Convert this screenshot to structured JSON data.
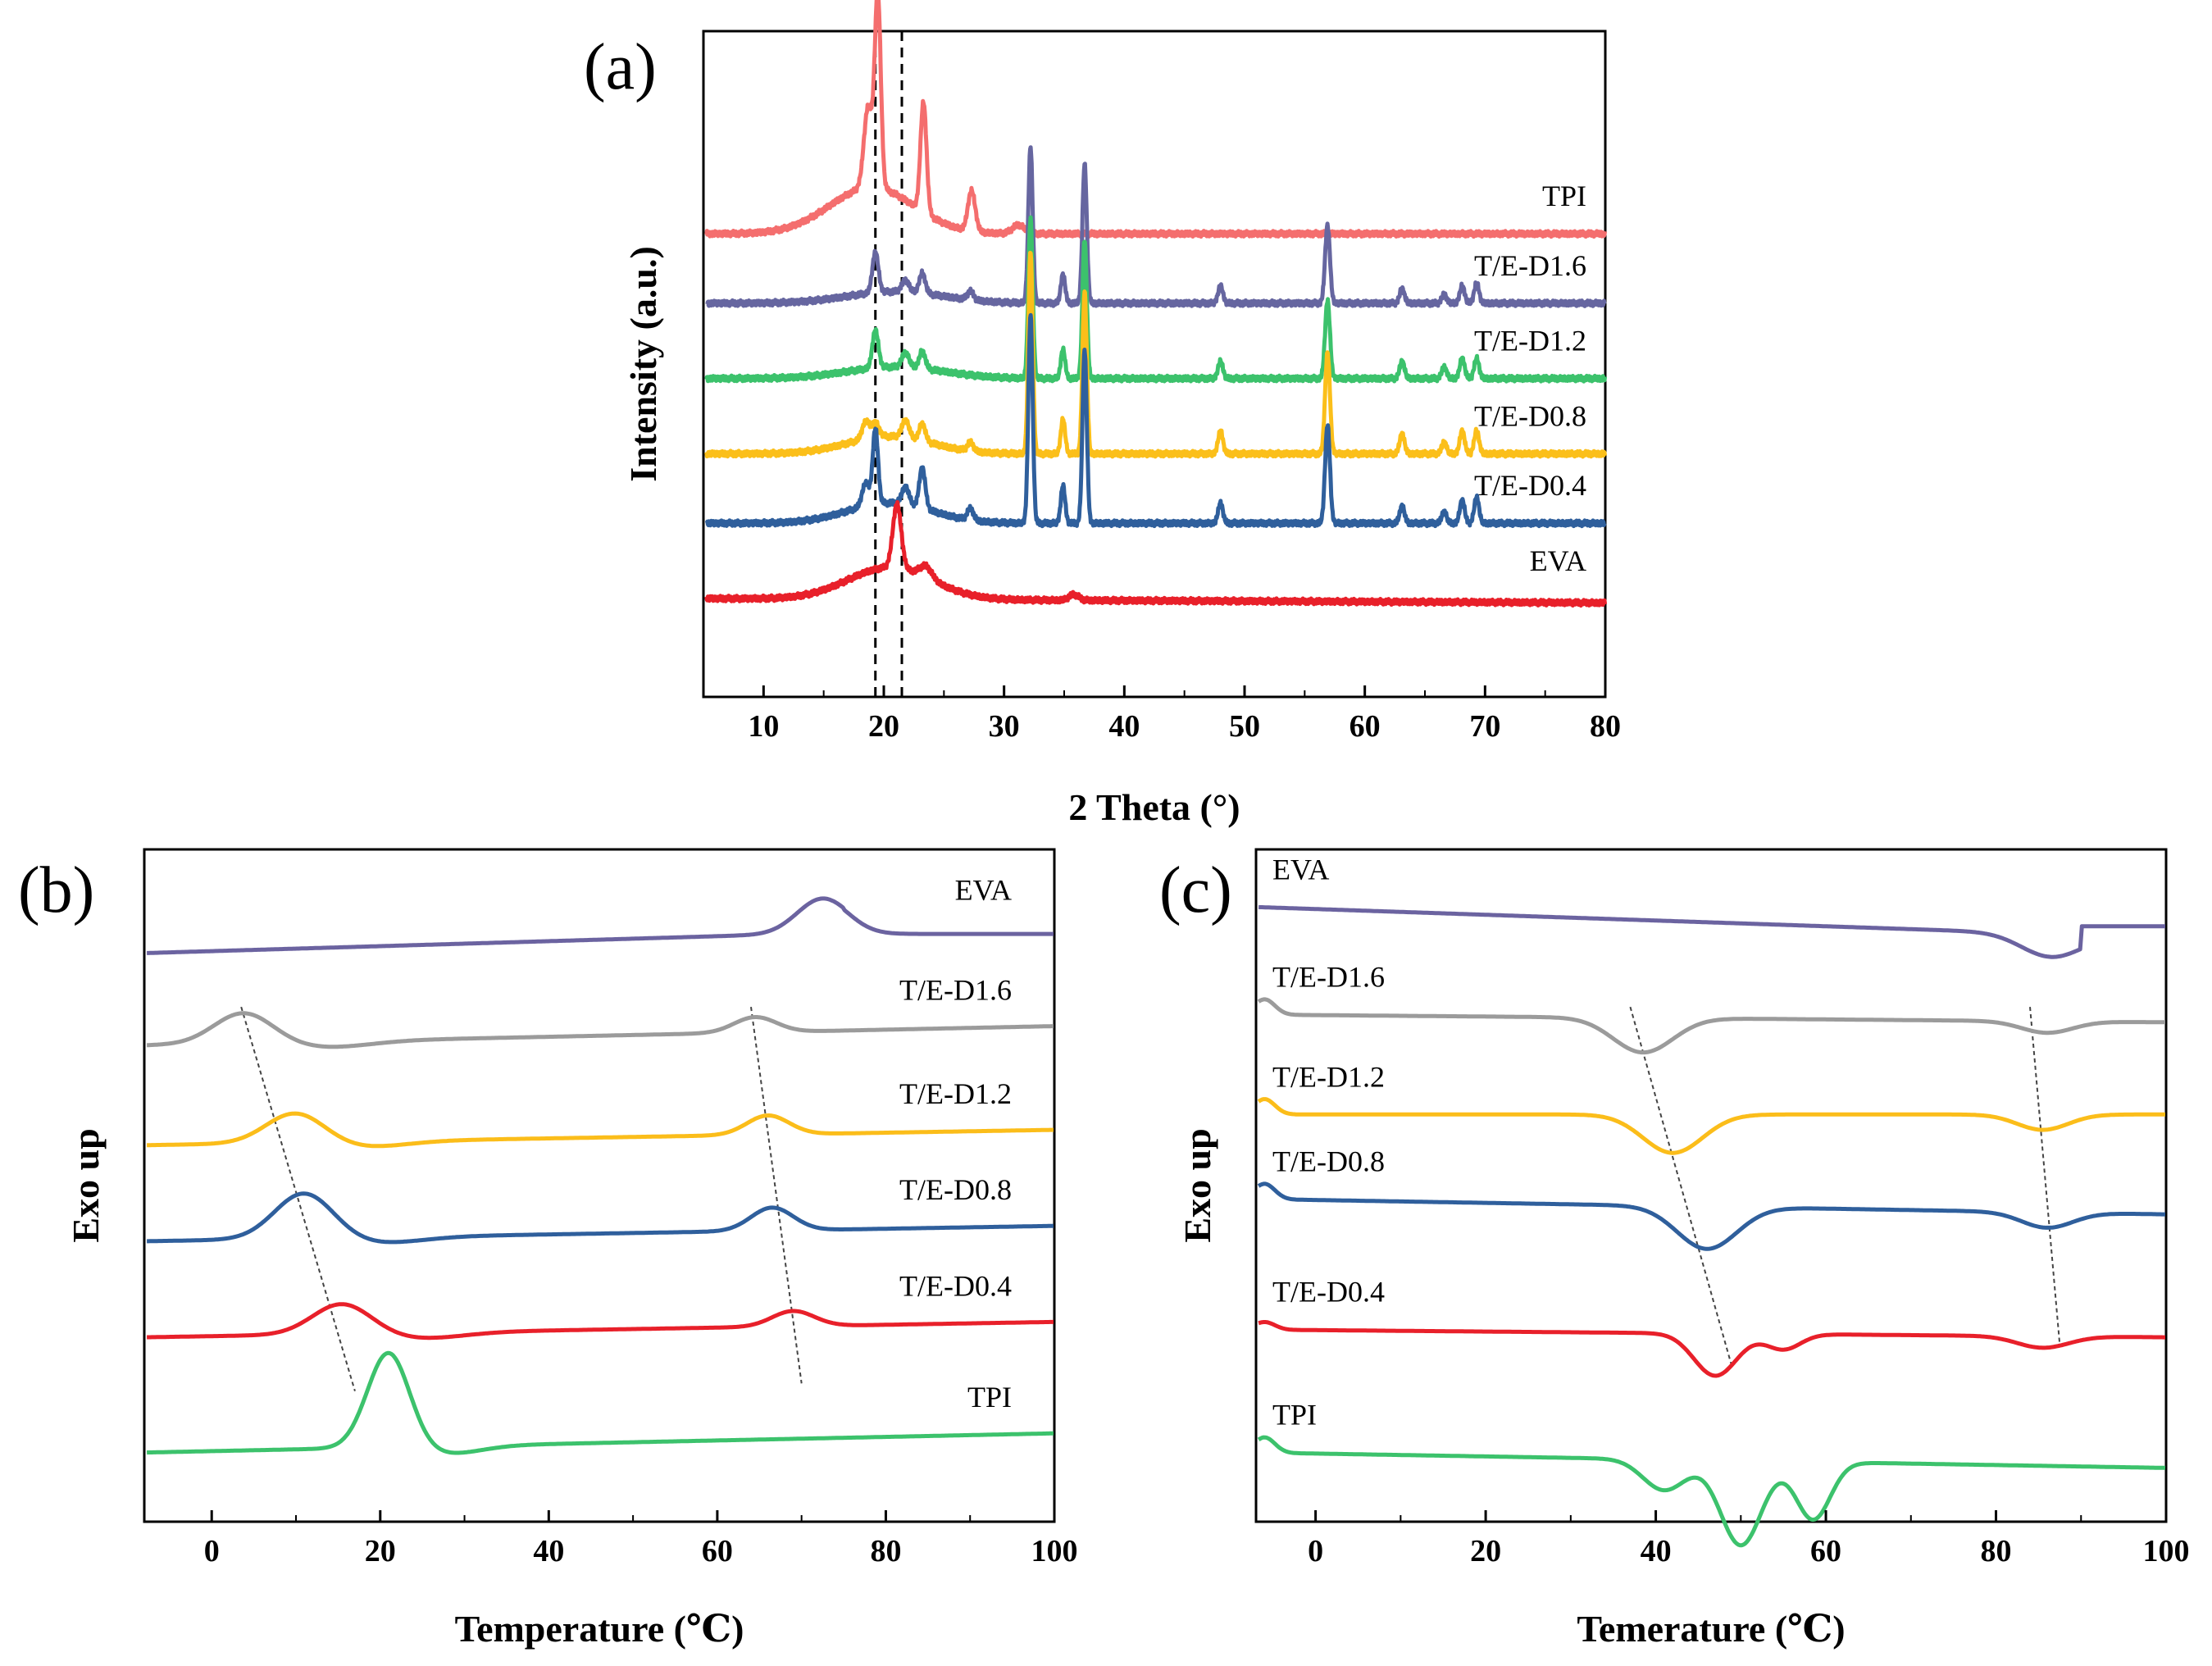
{
  "colors": {
    "TPI_xrd": "#f46e6e",
    "T/E-D1.6_xrd": "#6666a0",
    "T/E-D1.2_xrd": "#3cc26c",
    "T/E-D0.8_xrd": "#fbbf1a",
    "T/E-D0.4_xrd": "#2f5f9c",
    "EVA_xrd": "#e8202a",
    "EVA_dsc": "#6b63a0",
    "T/E-D1.6_dsc": "#9b9b9b",
    "T/E-D1.2_dsc": "#fbbd1a",
    "T/E-D0.8_dsc": "#2f5f9c",
    "T/E-D0.4_dsc": "#e8202a",
    "TPI_dsc": "#3cc26c"
  },
  "chart_data": [
    {
      "id": "a",
      "panel_label": "(a)",
      "type": "line",
      "xlabel": "2 Theta (°)",
      "ylabel": "Intensity (a.u.)",
      "xlim": [
        5,
        80
      ],
      "xticks": [
        "10",
        "20",
        "30",
        "40",
        "50",
        "60",
        "70",
        "80"
      ],
      "yticks": [],
      "grid": false,
      "reference_lines_x": [
        19.3,
        21.5
      ],
      "series": [
        {
          "name": "TPI",
          "label": "TPI",
          "color_key": "TPI_xrd",
          "baseline": 100,
          "slope": 0.0,
          "broad_halo": {
            "center": 19,
            "height": 16,
            "width": 3.5
          },
          "peaks": [
            [
              18.7,
              28,
              0.35
            ],
            [
              19.5,
              66,
              0.25
            ],
            [
              23.3,
              38,
              0.25
            ],
            [
              27.3,
              14,
              0.3
            ],
            [
              31.2,
              3,
              0.5
            ]
          ]
        },
        {
          "name": "T/E-D1.6",
          "label": "T/E-D1.6",
          "color_key": "T/E-D1.6_xrd",
          "baseline": 76,
          "slope": 0.0,
          "broad_halo": {
            "center": 21,
            "height": 4,
            "width": 4
          },
          "peaks": [
            [
              19.3,
              14,
              0.25
            ],
            [
              21.8,
              4,
              0.3
            ],
            [
              23.2,
              7,
              0.25
            ],
            [
              27.2,
              3,
              0.25
            ],
            [
              32.2,
              54,
              0.18
            ],
            [
              34.9,
              10,
              0.18
            ],
            [
              36.7,
              48,
              0.18
            ],
            [
              48.0,
              6,
              0.2
            ],
            [
              56.9,
              27,
              0.2
            ],
            [
              63.1,
              5,
              0.2
            ],
            [
              66.6,
              3,
              0.2
            ],
            [
              68.1,
              6,
              0.2
            ],
            [
              69.3,
              7,
              0.2
            ]
          ]
        },
        {
          "name": "T/E-D1.2",
          "label": "T/E-D1.2",
          "color_key": "T/E-D1.2_xrd",
          "baseline": 50,
          "slope": 0.0,
          "broad_halo": {
            "center": 21,
            "height": 4,
            "width": 4
          },
          "peaks": [
            [
              19.3,
              13,
              0.25
            ],
            [
              21.8,
              5,
              0.3
            ],
            [
              23.2,
              6,
              0.25
            ],
            [
              32.2,
              55,
              0.18
            ],
            [
              34.9,
              10,
              0.18
            ],
            [
              36.7,
              48,
              0.18
            ],
            [
              48.0,
              6,
              0.2
            ],
            [
              56.9,
              27,
              0.2
            ],
            [
              63.1,
              6,
              0.2
            ],
            [
              66.6,
              4,
              0.2
            ],
            [
              68.1,
              7,
              0.2
            ],
            [
              69.3,
              7,
              0.2
            ]
          ]
        },
        {
          "name": "T/E-D0.8",
          "label": "T/E-D0.8",
          "color_key": "T/E-D0.8_xrd",
          "baseline": 24,
          "slope": 0.0,
          "broad_halo": {
            "center": 20.5,
            "height": 6,
            "width": 3.5
          },
          "peaks": [
            [
              18.5,
              6,
              0.3
            ],
            [
              19.3,
              5,
              0.3
            ],
            [
              21.8,
              6,
              0.3
            ],
            [
              23.2,
              6,
              0.25
            ],
            [
              27.2,
              3,
              0.25
            ],
            [
              32.2,
              70,
              0.18
            ],
            [
              34.9,
              12,
              0.18
            ],
            [
              36.7,
              56,
              0.18
            ],
            [
              48.0,
              8,
              0.2
            ],
            [
              56.9,
              35,
              0.2
            ],
            [
              63.1,
              7,
              0.2
            ],
            [
              66.6,
              4,
              0.2
            ],
            [
              68.1,
              8,
              0.2
            ],
            [
              69.3,
              8,
              0.2
            ]
          ]
        },
        {
          "name": "T/E-D0.4",
          "label": "T/E-D0.4",
          "color_key": "T/E-D0.4_xrd",
          "baseline": 0,
          "slope": 0.0,
          "broad_halo": {
            "center": 20.5,
            "height": 7,
            "width": 3.5
          },
          "peaks": [
            [
              18.5,
              8,
              0.3
            ],
            [
              19.3,
              26,
              0.22
            ],
            [
              21.8,
              6,
              0.3
            ],
            [
              23.2,
              14,
              0.25
            ],
            [
              27.2,
              4,
              0.25
            ],
            [
              32.2,
              72,
              0.18
            ],
            [
              34.9,
              13,
              0.18
            ],
            [
              36.7,
              60,
              0.18
            ],
            [
              48.0,
              7,
              0.2
            ],
            [
              56.9,
              34,
              0.2
            ],
            [
              63.1,
              6,
              0.2
            ],
            [
              66.6,
              4,
              0.2
            ],
            [
              68.1,
              8,
              0.2
            ],
            [
              69.3,
              9,
              0.2
            ]
          ]
        },
        {
          "name": "EVA",
          "label": "EVA",
          "color_key": "EVA_xrd",
          "baseline": -26,
          "slope": -0.02,
          "broad_halo": {
            "center": 20.5,
            "height": 11,
            "width": 3.5
          },
          "peaks": [
            [
              21.1,
              22,
              0.35
            ],
            [
              23.5,
              4,
              0.5
            ],
            [
              35.8,
              2,
              0.4
            ]
          ]
        }
      ]
    },
    {
      "id": "b",
      "panel_label": "(b)",
      "type": "line",
      "xlabel": "Temperature (℃)",
      "ylabel": "Exo up",
      "xlim": [
        -8,
        100
      ],
      "xticks": [
        "0",
        "20",
        "40",
        "60",
        "80",
        "100"
      ],
      "xtick_values": [
        0,
        20,
        40,
        60,
        80,
        100
      ],
      "yticks": [],
      "grid": false,
      "trend_lines": [
        [
          [
            3.5,
            134
          ],
          [
            17,
            34
          ]
        ],
        [
          [
            64,
            134
          ],
          [
            70,
            36
          ]
        ]
      ],
      "series": [
        {
          "name": "EVA",
          "label": "EVA",
          "color_key": "EVA_dsc",
          "y0": 148,
          "y1": 155,
          "plateau_from": 75,
          "plateau_y": 153,
          "peaks": [
            [
              72.5,
              9,
              3.0
            ]
          ]
        },
        {
          "name": "T/E-D1.6",
          "label": "T/E-D1.6",
          "color_key": "T/E-D1.6_dsc",
          "y0": 124,
          "y1": 129,
          "dip": [
            14,
            1.5,
            5
          ],
          "peaks": [
            [
              3.8,
              8,
              3.5
            ],
            [
              64.5,
              4,
              2.5
            ]
          ]
        },
        {
          "name": "T/E-D1.2",
          "label": "T/E-D1.2",
          "color_key": "T/E-D1.2_dsc",
          "y0": 98,
          "y1": 102,
          "dip": [
            18,
            1.5,
            5
          ],
          "peaks": [
            [
              10,
              8,
              3.5
            ],
            [
              66,
              5,
              2.5
            ]
          ]
        },
        {
          "name": "T/E-D0.8",
          "label": "T/E-D0.8",
          "color_key": "T/E-D0.8_dsc",
          "y0": 73,
          "y1": 77,
          "dip": [
            20,
            1.5,
            5
          ],
          "peaks": [
            [
              11,
              12,
              3.5
            ],
            [
              66.5,
              6,
              2.5
            ]
          ]
        },
        {
          "name": "T/E-D0.4",
          "label": "T/E-D0.4",
          "color_key": "T/E-D0.4_dsc",
          "y0": 48,
          "y1": 52,
          "dip": [
            25,
            1.5,
            5
          ],
          "peaks": [
            [
              15.5,
              8,
              3.5
            ],
            [
              69,
              4,
              2.5
            ]
          ]
        },
        {
          "name": "TPI",
          "label": "TPI",
          "color_key": "TPI_dsc",
          "y0": 18,
          "y1": 23,
          "dip": [
            28,
            2,
            4
          ],
          "peaks": [
            [
              21,
              25,
              2.5
            ]
          ]
        }
      ]
    },
    {
      "id": "c",
      "panel_label": "(c)",
      "type": "line",
      "xlabel": "Temerature (℃)",
      "ylabel": "Exo up",
      "xlim": [
        -7,
        100
      ],
      "xticks": [
        "0",
        "20",
        "40",
        "60",
        "80",
        "100"
      ],
      "xtick_values": [
        0,
        20,
        40,
        60,
        80,
        100
      ],
      "yticks": [],
      "grid": false,
      "trend_lines": [
        [
          [
            37,
            134
          ],
          [
            49,
            40
          ]
        ],
        [
          [
            84,
            134
          ],
          [
            87.5,
            46
          ]
        ]
      ],
      "series": [
        {
          "name": "EVA",
          "label": "EVA",
          "color_key": "EVA_dsc",
          "y0": 160,
          "y1": 152,
          "dips": [
            [
              86.5,
              6,
              3.5
            ]
          ],
          "recover_at": 90,
          "recover_y": 155
        },
        {
          "name": "T/E-D1.6",
          "label": "T/E-D1.6",
          "color_key": "T/E-D1.6_dsc",
          "y0": 132,
          "y1": 130,
          "dips": [
            [
              38.5,
              9,
              3.5
            ],
            [
              86,
              3,
              3
            ]
          ],
          "front_hump": [
            -6,
            4
          ]
        },
        {
          "name": "T/E-D1.2",
          "label": "T/E-D1.2",
          "color_key": "T/E-D1.2_dsc",
          "y0": 106,
          "y1": 106,
          "dips": [
            [
              42,
              10,
              3.5
            ],
            [
              85.5,
              4,
              3
            ]
          ],
          "front_hump": [
            -6,
            4
          ]
        },
        {
          "name": "T/E-D0.8",
          "label": "T/E-D0.8",
          "color_key": "T/E-D0.8_dsc",
          "y0": 84,
          "y1": 80,
          "dips": [
            [
              46,
              11,
              3.5
            ],
            [
              86,
              4,
              3
            ]
          ],
          "front_hump": [
            -6,
            4
          ]
        },
        {
          "name": "T/E-D0.4",
          "label": "T/E-D0.4",
          "color_key": "T/E-D0.4_dsc",
          "y0": 50,
          "y1": 48,
          "dips": [
            [
              47,
              11,
              2.5
            ],
            [
              55,
              4,
              2.0
            ],
            [
              85.5,
              3,
              3
            ]
          ],
          "front_hump": [
            -6,
            2
          ]
        },
        {
          "name": "TPI",
          "label": "TPI",
          "color_key": "TPI_dsc",
          "y0": 18,
          "y1": 14,
          "dips": [
            [
              41,
              8,
              2.5
            ],
            [
              50,
              22,
              2.4
            ],
            [
              58.5,
              15,
              2.0
            ]
          ],
          "front_hump": [
            -6,
            4
          ]
        }
      ]
    }
  ]
}
